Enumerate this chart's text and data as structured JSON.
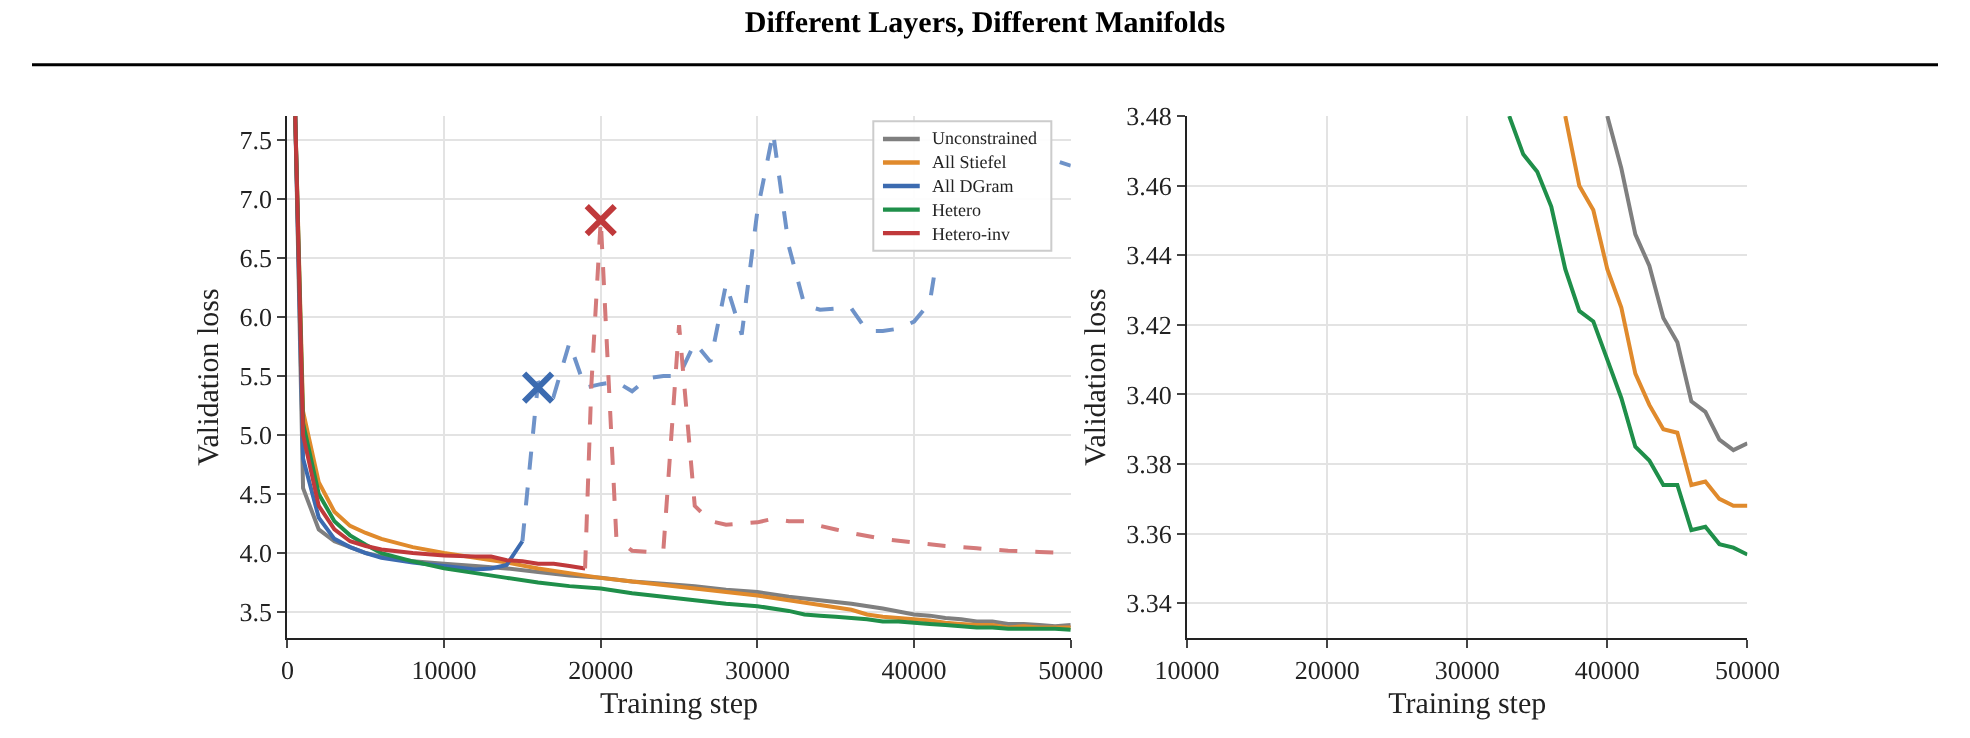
{
  "chart_data": [
    {
      "type": "line",
      "title": "Different Layers, Different Manifolds",
      "xlabel": "Training step",
      "ylabel": "Validation loss",
      "xlim": [
        0,
        50000
      ],
      "ylim": [
        3.28,
        7.7
      ],
      "xticks": [
        0,
        10000,
        20000,
        30000,
        40000,
        50000
      ],
      "yticks": [
        3.5,
        {
          "value": 4,
          "label": "4.0"
        },
        4.5,
        {
          "value": 5,
          "label": "5.0"
        },
        5.5,
        {
          "value": 6,
          "label": "6.0"
        },
        6.5,
        {
          "value": 7,
          "label": "7.0"
        },
        7.5
      ],
      "grid": true,
      "legend": "top right",
      "line_style": "solid",
      "marker": "none",
      "series": [
        {
          "name": "Unconstrained",
          "color": "#7f7f7f",
          "x": [
            500,
            1000,
            2000,
            3000,
            4000,
            5000,
            6000,
            8000,
            10000,
            12000,
            14000,
            16000,
            18000,
            20000,
            22000,
            24000,
            26000,
            28000,
            30000,
            32000,
            34000,
            36000,
            38000,
            40000,
            41000,
            42000,
            43000,
            44000,
            45000,
            46000,
            47000,
            48000,
            49000,
            50000
          ],
          "values": [
            7.7,
            4.55,
            4.2,
            4.1,
            4.05,
            4.0,
            3.97,
            3.93,
            3.91,
            3.89,
            3.87,
            3.84,
            3.81,
            3.79,
            3.76,
            3.74,
            3.72,
            3.69,
            3.67,
            3.63,
            3.6,
            3.57,
            3.53,
            3.48,
            3.47,
            3.45,
            3.44,
            3.42,
            3.42,
            3.4,
            3.4,
            3.39,
            3.38,
            3.39
          ]
        },
        {
          "name": "All Stiefel",
          "color": "#e08a2c",
          "x": [
            500,
            1000,
            2000,
            3000,
            4000,
            5000,
            6000,
            8000,
            10000,
            12000,
            14000,
            16000,
            18000,
            20000,
            22000,
            24000,
            26000,
            28000,
            30000,
            32000,
            34000,
            36000,
            37000,
            38000,
            39000,
            40000,
            41000,
            42000,
            43000,
            44000,
            45000,
            46000,
            47000,
            48000,
            49000,
            50000
          ],
          "values": [
            7.7,
            5.2,
            4.6,
            4.35,
            4.23,
            4.17,
            4.12,
            4.05,
            4.0,
            3.96,
            3.92,
            3.87,
            3.83,
            3.79,
            3.76,
            3.73,
            3.7,
            3.67,
            3.64,
            3.6,
            3.56,
            3.52,
            3.48,
            3.46,
            3.45,
            3.44,
            3.43,
            3.41,
            3.4,
            3.39,
            3.39,
            3.37,
            3.38,
            3.37,
            3.37,
            3.37
          ]
        },
        {
          "name": "All DGram",
          "color": "#3c6bb0",
          "x": [
            500,
            1000,
            2000,
            3000,
            4000,
            5000,
            6000,
            8000,
            10000,
            12000,
            13000,
            14000,
            15000
          ],
          "values": [
            7.7,
            4.8,
            4.3,
            4.12,
            4.05,
            4.0,
            3.96,
            3.92,
            3.89,
            3.86,
            3.87,
            3.9,
            4.1
          ]
        },
        {
          "name": "Hetero",
          "color": "#1f8f4a",
          "x": [
            500,
            1000,
            2000,
            3000,
            4000,
            5000,
            6000,
            8000,
            10000,
            12000,
            14000,
            16000,
            18000,
            20000,
            22000,
            24000,
            26000,
            28000,
            30000,
            32000,
            33000,
            34000,
            35000,
            36000,
            37000,
            38000,
            39000,
            40000,
            41000,
            42000,
            43000,
            44000,
            45000,
            46000,
            47000,
            48000,
            49000,
            50000
          ],
          "values": [
            7.7,
            5.1,
            4.5,
            4.27,
            4.15,
            4.07,
            4.0,
            3.93,
            3.87,
            3.83,
            3.79,
            3.75,
            3.72,
            3.7,
            3.66,
            3.63,
            3.6,
            3.57,
            3.55,
            3.51,
            3.48,
            3.47,
            3.46,
            3.45,
            3.44,
            3.42,
            3.42,
            3.41,
            3.4,
            3.39,
            3.38,
            3.37,
            3.37,
            3.36,
            3.36,
            3.36,
            3.36,
            3.35
          ]
        },
        {
          "name": "Hetero-inv",
          "color": "#c0393b",
          "x": [
            500,
            1000,
            2000,
            3000,
            4000,
            5000,
            6000,
            8000,
            10000,
            12000,
            13000,
            14000,
            15000,
            16000,
            17000,
            18000,
            19000
          ],
          "values": [
            7.7,
            5.0,
            4.4,
            4.2,
            4.1,
            4.06,
            4.03,
            4.0,
            3.98,
            3.97,
            3.97,
            3.94,
            3.93,
            3.91,
            3.91,
            3.89,
            3.87
          ]
        },
        {
          "color": "#6f93c9",
          "line_style": "dashed",
          "x": [
            15000,
            16000,
            17000,
            18000,
            19000,
            20000,
            21000,
            22000,
            23000,
            24000,
            25000,
            26000,
            27000,
            28000,
            29000,
            30000,
            31000,
            32000,
            33000,
            34000,
            35000,
            36000,
            37000,
            38000,
            39000,
            40000,
            41000,
            41400,
            45000,
            49300,
            50000
          ],
          "values": [
            4.1,
            5.45,
            5.33,
            5.78,
            5.4,
            5.43,
            5.45,
            5.37,
            5.48,
            5.5,
            5.5,
            5.78,
            5.62,
            6.28,
            5.85,
            6.9,
            7.56,
            6.6,
            6.1,
            6.06,
            6.07,
            6.07,
            5.88,
            5.88,
            5.9,
            5.96,
            6.12,
            6.45,
            null,
            7.31,
            7.28
          ]
        },
        {
          "color": "#d47a7a",
          "line_style": "dashed",
          "x": [
            19000,
            19400,
            20000,
            21000,
            22000,
            23000,
            24000,
            25000,
            26000,
            27000,
            28000,
            29000,
            30000,
            31000,
            32000,
            33000,
            34000,
            35000,
            36000,
            38000,
            40000,
            42000,
            44000,
            46000,
            48000,
            50000
          ],
          "values": [
            3.87,
            5.42,
            6.82,
            4.12,
            4.02,
            4.01,
            4.03,
            5.93,
            4.4,
            4.27,
            4.24,
            4.25,
            4.26,
            4.29,
            4.27,
            4.27,
            4.23,
            4.2,
            4.17,
            4.12,
            4.09,
            4.06,
            4.04,
            4.02,
            4.01,
            4.0
          ]
        },
        {
          "type": "scatter",
          "marker": "cross",
          "color": "#3c6bb0",
          "x": [
            16000
          ],
          "values": [
            5.4
          ]
        },
        {
          "type": "scatter",
          "marker": "cross",
          "color": "#c0393b",
          "x": [
            20000
          ],
          "values": [
            6.82
          ]
        }
      ]
    },
    {
      "type": "line",
      "xlabel": "Training step",
      "ylabel": "Validation loss",
      "xlim": [
        10000,
        50000
      ],
      "ylim": [
        3.33,
        3.48
      ],
      "xticks": [
        10000,
        20000,
        30000,
        40000,
        50000
      ],
      "yticks": [
        3.34,
        3.36,
        3.38,
        {
          "value": 3.4,
          "label": "3.40"
        },
        3.42,
        3.44,
        3.46,
        3.48
      ],
      "grid": true,
      "line_style": "solid",
      "marker": "none",
      "series": [
        {
          "color": "#7f7f7f",
          "x": [
            40000,
            41000,
            42000,
            43000,
            44000,
            45000,
            46000,
            47000,
            48000,
            49000,
            50000
          ],
          "values": [
            3.48,
            3.465,
            3.446,
            3.437,
            3.422,
            3.415,
            3.398,
            3.395,
            3.387,
            3.384,
            3.386
          ]
        },
        {
          "color": "#e08a2c",
          "x": [
            37000,
            38000,
            39000,
            40000,
            41000,
            42000,
            43000,
            44000,
            45000,
            46000,
            47000,
            48000,
            49000,
            50000
          ],
          "values": [
            3.48,
            3.46,
            3.453,
            3.436,
            3.425,
            3.406,
            3.397,
            3.39,
            3.389,
            3.374,
            3.375,
            3.37,
            3.368,
            3.368
          ]
        },
        {
          "color": "#1f8f4a",
          "x": [
            33000,
            34000,
            35000,
            36000,
            37000,
            38000,
            39000,
            40000,
            41000,
            42000,
            43000,
            44000,
            45000,
            46000,
            47000,
            48000,
            49000,
            50000
          ],
          "values": [
            3.48,
            3.469,
            3.464,
            3.454,
            3.436,
            3.424,
            3.421,
            3.41,
            3.399,
            3.385,
            3.381,
            3.374,
            3.374,
            3.361,
            3.362,
            3.357,
            3.356,
            3.354
          ]
        }
      ]
    }
  ]
}
